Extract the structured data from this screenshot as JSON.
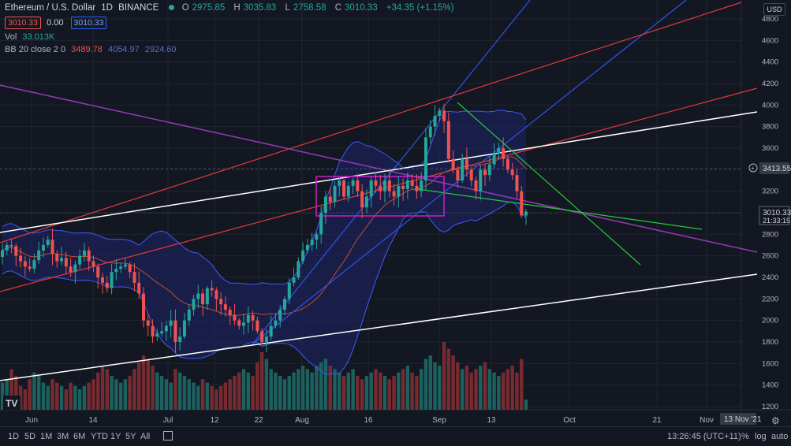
{
  "legend": {
    "symbol": "Ethereum / U.S. Dollar",
    "interval": "1D",
    "exchange": "BINANCE",
    "ohlc": [
      {
        "k": "O",
        "v": "2975.85"
      },
      {
        "k": "H",
        "v": "3035.83"
      },
      {
        "k": "L",
        "v": "2758.58"
      },
      {
        "k": "C",
        "v": "3010.33"
      }
    ],
    "change": "+34.35 (+1.15%)",
    "bid": "3010.33",
    "spread": "0.00",
    "ask": "3010.33",
    "vol_label": "Vol",
    "vol_value": "33.013K",
    "bb_label": "BB 20 close 2 0",
    "bb_basis": "3489.78",
    "bb_upper": "4054.97",
    "bb_lower": "2924.60"
  },
  "currency": "USD",
  "price_tag": {
    "price": "3010.33",
    "countdown": "21:33:15"
  },
  "crosshair_tag": "3413.55",
  "date_tag": "13 Nov '21",
  "bottom": {
    "ranges": [
      "1D",
      "5D",
      "1M",
      "3M",
      "6M",
      "YTD",
      "1Y",
      "5Y",
      "All"
    ],
    "clock": "13:26:45 (UTC+11)",
    "pct": "%",
    "log": "log",
    "auto": "auto"
  },
  "colors": {
    "up": "#26a69a",
    "down": "#ef5350",
    "bb": "#3d5afe",
    "bb_fill": "#1e2466"
  },
  "chart_data": {
    "type": "candlestick",
    "title": "Ethereum / U.S. Dollar, 1D, BINANCE",
    "y_ticks": [
      1200,
      1400,
      1600,
      1800,
      2000,
      2200,
      2400,
      2600,
      2800,
      3000,
      3200,
      3400,
      3600,
      3800,
      4000,
      4200,
      4400,
      4600,
      4800
    ],
    "x_ticks": [
      "Jun",
      "14",
      "Jul",
      "12",
      "22",
      "Aug",
      "16",
      "Sep",
      "13",
      "Oct",
      "21",
      "Nov"
    ],
    "ylim": [
      1150,
      4900
    ],
    "grid": true,
    "close_series_approx": [
      2650,
      2700,
      2690,
      2600,
      2550,
      2500,
      2480,
      2560,
      2650,
      2700,
      2750,
      2620,
      2550,
      2580,
      2500,
      2450,
      2520,
      2600,
      2650,
      2550,
      2500,
      2400,
      2350,
      2300,
      2450,
      2480,
      2500,
      2520,
      2450,
      2350,
      2250,
      2000,
      1950,
      1850,
      1880,
      1900,
      1950,
      2000,
      1800,
      1850,
      2000,
      2100,
      2200,
      2250,
      2150,
      2300,
      2280,
      2200,
      2150,
      2100,
      2050,
      2000,
      1950,
      1980,
      2050,
      2000,
      1900,
      1800,
      1850,
      1950,
      2000,
      2100,
      2200,
      2350,
      2400,
      2550,
      2650,
      2700,
      2750,
      2800,
      3000,
      3150,
      3100,
      3250,
      3300,
      3150,
      3250,
      3300,
      3200,
      3050,
      3150,
      3300,
      3250,
      3200,
      3300,
      3200,
      3150,
      3250,
      3220,
      3300,
      3250,
      3200,
      3300,
      3700,
      3800,
      3900,
      3950,
      3850,
      3500,
      3400,
      3300,
      3500,
      3400,
      3300,
      3200,
      3400,
      3350,
      3450,
      3550,
      3600,
      3500,
      3400,
      3350,
      3200,
      2975,
      3010
    ],
    "volume_series_approx": [
      8,
      9,
      12,
      10,
      7,
      6,
      9,
      11,
      10,
      8,
      7,
      9,
      8,
      7,
      6,
      8,
      7,
      6,
      7,
      8,
      9,
      11,
      13,
      12,
      10,
      9,
      8,
      9,
      10,
      12,
      14,
      16,
      15,
      13,
      11,
      10,
      9,
      8,
      12,
      11,
      10,
      9,
      8,
      7,
      9,
      8,
      7,
      6,
      7,
      8,
      9,
      10,
      11,
      12,
      11,
      10,
      14,
      17,
      15,
      12,
      11,
      10,
      9,
      10,
      11,
      12,
      13,
      12,
      11,
      13,
      14,
      15,
      13,
      12,
      11,
      10,
      11,
      12,
      10,
      9,
      10,
      11,
      12,
      11,
      10,
      9,
      10,
      11,
      12,
      13,
      11,
      10,
      12,
      15,
      16,
      14,
      13,
      20,
      18,
      16,
      14,
      12,
      13,
      11,
      12,
      13,
      14,
      12,
      11,
      10,
      11,
      12,
      13,
      11,
      15,
      3
    ],
    "bollinger": {
      "basis": 3489.78,
      "upper": 4054.97,
      "lower": 2924.6
    },
    "last_price": 3010.33
  }
}
